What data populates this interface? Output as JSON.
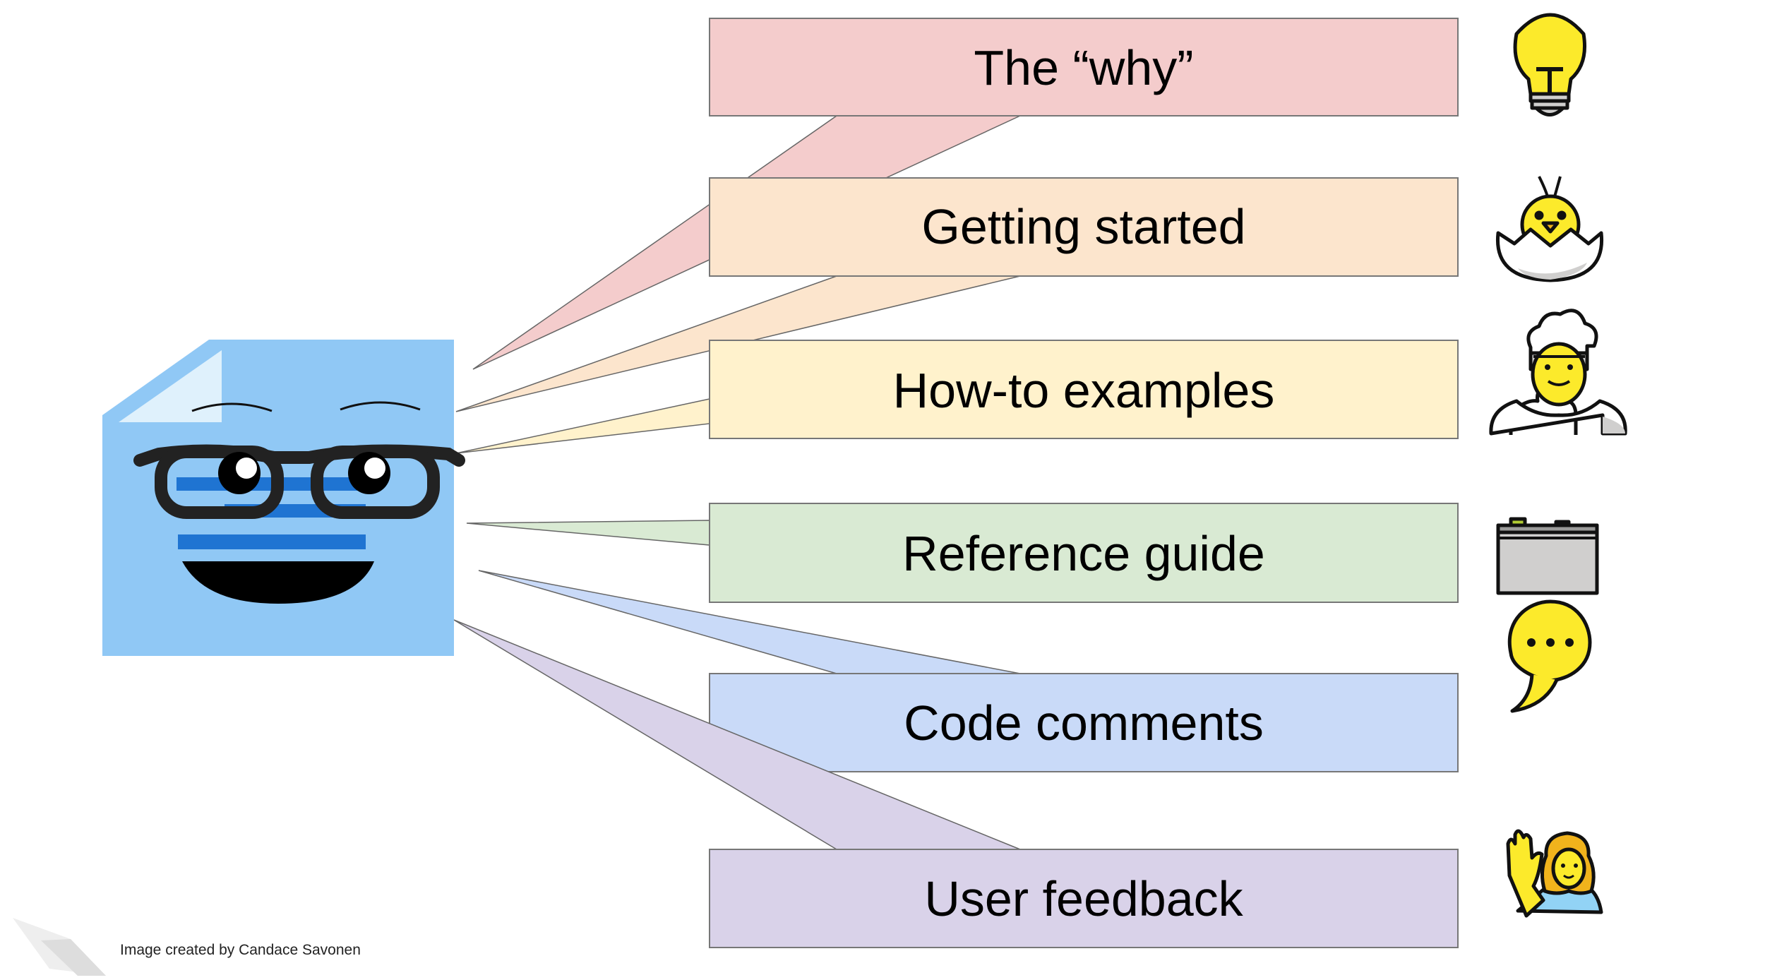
{
  "boxes": [
    {
      "label": "The “why”",
      "fill": "#f4cccc",
      "icon": "light-bulb-icon"
    },
    {
      "label": "Getting started",
      "fill": "#fce5cd",
      "icon": "hatching-chick-icon"
    },
    {
      "label": "How-to examples",
      "fill": "#fff2cc",
      "icon": "cook-icon"
    },
    {
      "label": "Reference guide",
      "fill": "#d9ead3",
      "icon": "card-index-icon"
    },
    {
      "label": "Code comments",
      "fill": "#c9daf8",
      "icon": "speech-balloon-icon"
    },
    {
      "label": "User feedback",
      "fill": "#d9d2e9",
      "icon": "person-raising-hand-icon"
    }
  ],
  "credit": "Image created by Candace Savonen",
  "colors": {
    "document": "#90c8f5",
    "stripe": "#1f74d2",
    "stroke": "#777777"
  }
}
